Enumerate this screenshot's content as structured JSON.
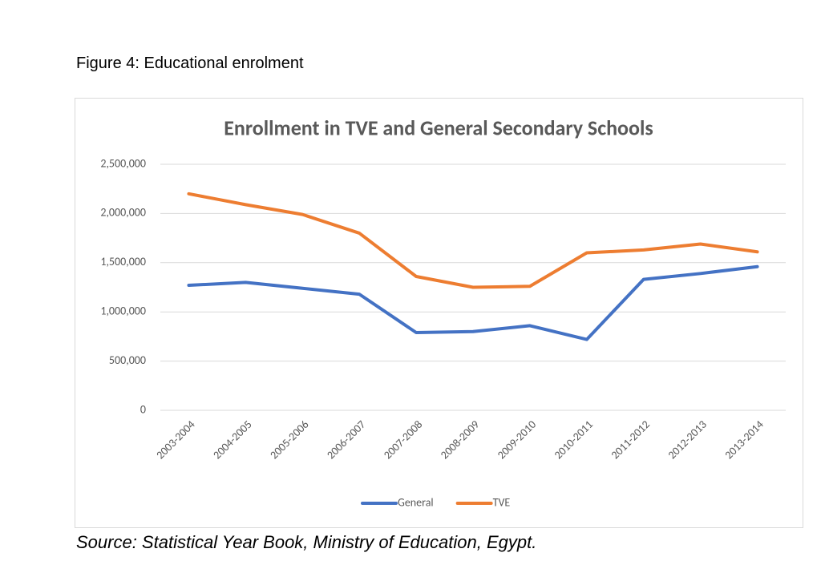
{
  "header": {
    "figure_label": "Figure 4: Educational enrolment"
  },
  "chart_data": {
    "type": "line",
    "title": "Enrollment in TVE and General Secondary Schools",
    "categories": [
      "2003-2004",
      "2004-2005",
      "2005-2006",
      "2006-2007",
      "2007-2008",
      "2008-2009",
      "2009-2010",
      "2010-2011",
      "2011-2012",
      "2012-2013",
      "2013-2014"
    ],
    "series": [
      {
        "name": "General",
        "color": "#4472c4",
        "values": [
          1270000,
          1300000,
          1240000,
          1180000,
          790000,
          800000,
          860000,
          720000,
          1330000,
          1390000,
          1460000
        ]
      },
      {
        "name": "TVE",
        "color": "#ed7d31",
        "values": [
          2200000,
          2090000,
          1990000,
          1800000,
          1360000,
          1250000,
          1260000,
          1600000,
          1630000,
          1690000,
          1610000
        ]
      }
    ],
    "ylim": [
      0,
      2500000
    ],
    "yticks": [
      0,
      {
        "value": 500000,
        "label": "500,000"
      },
      {
        "value": 1000000,
        "label": "1,000,000"
      },
      {
        "value": 1500000,
        "label": "1,500,000"
      },
      {
        "value": 2000000,
        "label": "2,000,000"
      },
      {
        "value": 2500000,
        "label": "2,500,000"
      }
    ],
    "grid": true,
    "legend": "bottom"
  },
  "source": "Source: Statistical Year Book, Ministry of Education, Egypt."
}
